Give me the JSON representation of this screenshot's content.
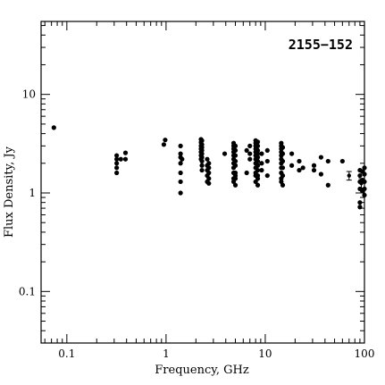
{
  "chart_data": {
    "type": "scatter",
    "title": "2155−152",
    "xlabel": "Frequency, GHz",
    "ylabel": "Flux Density, Jy",
    "x_scale": "log",
    "y_scale": "log",
    "xlim": [
      0.055,
      100
    ],
    "ylim": [
      0.03,
      55
    ],
    "x_tick_labels": [
      "0.1",
      "1",
      "10",
      "100"
    ],
    "y_tick_labels": [
      "0.1",
      "1",
      "10"
    ],
    "grid": false,
    "legend": "none",
    "points": [
      [
        0.074,
        4.6
      ],
      [
        0.318,
        2.4
      ],
      [
        0.318,
        2.2
      ],
      [
        0.318,
        2.0
      ],
      [
        0.318,
        1.8
      ],
      [
        0.318,
        1.6
      ],
      [
        0.35,
        2.2
      ],
      [
        0.39,
        2.55
      ],
      [
        0.39,
        2.2
      ],
      [
        0.95,
        3.1
      ],
      [
        0.98,
        3.45
      ],
      [
        1.4,
        3.0
      ],
      [
        1.4,
        2.5
      ],
      [
        1.4,
        2.3
      ],
      [
        1.4,
        2.0
      ],
      [
        1.4,
        1.6
      ],
      [
        1.4,
        1.3
      ],
      [
        1.4,
        1.0
      ],
      [
        1.45,
        2.2
      ],
      [
        2.25,
        3.5
      ],
      [
        2.25,
        3.25
      ],
      [
        2.25,
        3.0
      ],
      [
        2.25,
        2.8
      ],
      [
        2.25,
        2.6
      ],
      [
        2.25,
        2.4
      ],
      [
        2.25,
        2.2
      ],
      [
        2.3,
        3.4
      ],
      [
        2.3,
        3.1
      ],
      [
        2.3,
        2.9
      ],
      [
        2.3,
        2.7
      ],
      [
        2.3,
        2.5
      ],
      [
        2.3,
        2.3
      ],
      [
        2.3,
        2.1
      ],
      [
        2.3,
        1.9
      ],
      [
        2.3,
        1.7
      ],
      [
        2.6,
        2.2
      ],
      [
        2.6,
        1.9
      ],
      [
        2.6,
        1.7
      ],
      [
        2.6,
        1.5
      ],
      [
        2.6,
        1.3
      ],
      [
        2.7,
        2.0
      ],
      [
        2.7,
        1.8
      ],
      [
        2.7,
        1.6
      ],
      [
        2.7,
        1.4
      ],
      [
        2.7,
        1.25
      ],
      [
        3.9,
        2.5
      ],
      [
        4.8,
        3.2
      ],
      [
        4.8,
        3.0
      ],
      [
        4.8,
        2.8
      ],
      [
        4.8,
        2.6
      ],
      [
        4.8,
        2.4
      ],
      [
        4.8,
        2.2
      ],
      [
        4.8,
        2.0
      ],
      [
        4.8,
        1.8
      ],
      [
        4.8,
        1.6
      ],
      [
        4.8,
        1.4
      ],
      [
        4.8,
        1.3
      ],
      [
        5.0,
        3.0
      ],
      [
        5.0,
        2.7
      ],
      [
        5.0,
        2.4
      ],
      [
        5.0,
        2.1
      ],
      [
        5.0,
        1.9
      ],
      [
        5.0,
        1.6
      ],
      [
        5.0,
        1.5
      ],
      [
        5.0,
        1.4
      ],
      [
        5.0,
        1.2
      ],
      [
        6.5,
        2.7
      ],
      [
        6.5,
        1.6
      ],
      [
        7.0,
        3.0
      ],
      [
        7.0,
        2.5
      ],
      [
        7.0,
        2.2
      ],
      [
        8.0,
        3.4
      ],
      [
        8.0,
        3.2
      ],
      [
        8.0,
        3.0
      ],
      [
        8.0,
        2.8
      ],
      [
        8.0,
        2.6
      ],
      [
        8.0,
        2.4
      ],
      [
        8.0,
        2.2
      ],
      [
        8.0,
        2.0
      ],
      [
        8.0,
        1.8
      ],
      [
        8.0,
        1.6
      ],
      [
        8.0,
        1.5
      ],
      [
        8.0,
        1.3
      ],
      [
        8.4,
        3.3
      ],
      [
        8.4,
        3.0
      ],
      [
        8.4,
        2.7
      ],
      [
        8.4,
        2.5
      ],
      [
        8.4,
        2.3
      ],
      [
        8.4,
        2.1
      ],
      [
        8.4,
        1.9
      ],
      [
        8.4,
        1.7
      ],
      [
        8.4,
        1.5
      ],
      [
        8.4,
        1.4
      ],
      [
        8.4,
        1.2
      ],
      [
        9.2,
        2.5
      ],
      [
        9.2,
        2.0
      ],
      [
        9.2,
        1.7
      ],
      [
        10.5,
        2.7
      ],
      [
        10.5,
        2.1
      ],
      [
        10.5,
        1.5
      ],
      [
        14.5,
        3.2
      ],
      [
        14.5,
        3.0
      ],
      [
        14.5,
        2.8
      ],
      [
        14.5,
        2.6
      ],
      [
        14.5,
        2.4
      ],
      [
        14.5,
        2.2
      ],
      [
        14.5,
        2.0
      ],
      [
        14.5,
        1.8
      ],
      [
        14.5,
        1.6
      ],
      [
        14.5,
        1.4
      ],
      [
        14.5,
        1.3
      ],
      [
        15.0,
        2.9
      ],
      [
        15.0,
        2.5
      ],
      [
        15.0,
        2.1
      ],
      [
        15.0,
        1.8
      ],
      [
        15.0,
        1.5
      ],
      [
        15.0,
        1.2
      ],
      [
        18.5,
        2.5
      ],
      [
        18.5,
        1.9
      ],
      [
        22.0,
        2.1
      ],
      [
        22.0,
        1.7
      ],
      [
        24.0,
        1.8
      ],
      [
        31.0,
        1.9
      ],
      [
        31.0,
        1.7
      ],
      [
        36.5,
        2.3
      ],
      [
        36.5,
        1.55
      ],
      [
        43.0,
        2.1
      ],
      [
        43.0,
        1.2
      ],
      [
        60.0,
        2.1
      ],
      [
        90.0,
        1.7
      ],
      [
        90.0,
        1.5
      ],
      [
        90.0,
        1.3
      ],
      [
        90.0,
        1.1
      ],
      [
        90.0,
        0.8
      ],
      [
        90.0,
        0.72
      ],
      [
        95.0,
        1.65
      ],
      [
        95.0,
        1.35
      ],
      [
        95.0,
        1.05
      ],
      [
        100.0,
        1.8
      ],
      [
        100.0,
        1.55
      ],
      [
        100.0,
        1.3
      ],
      [
        100.0,
        1.1
      ],
      [
        100.0,
        0.95
      ]
    ],
    "error_points": [
      {
        "x": 70.0,
        "y": 1.5,
        "ylow": 1.35,
        "yhigh": 1.65
      },
      {
        "x": 93.0,
        "y": 1.25,
        "ylow": 1.12,
        "yhigh": 1.4
      }
    ]
  }
}
